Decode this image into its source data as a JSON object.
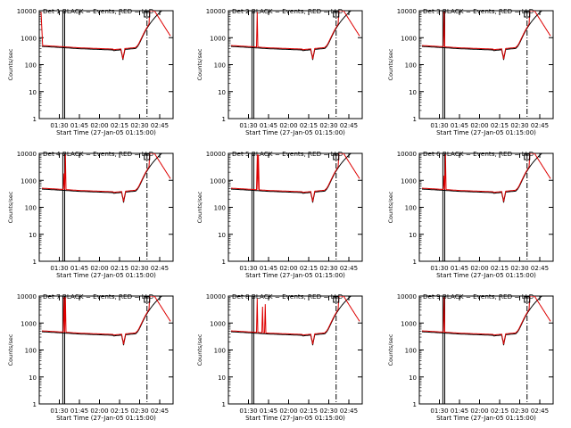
{
  "chart_data": [
    {
      "type": "line",
      "title": "Det 1  BLACK = Events, RED = LLD",
      "xlabel": "Start Time (27-Jan-05 01:15:00)",
      "ylabel": "Counts/sec",
      "yscale": "log",
      "ylim": [
        1,
        10000
      ],
      "xticks": [
        "01:30",
        "01:45",
        "02:00",
        "02:15",
        "02:30",
        "02:45"
      ],
      "yticks": [
        "1",
        "10",
        "100",
        "1000",
        "10000"
      ],
      "spike_min": [
        [
          1.32,
          9000
        ],
        [
          1.36,
          9000
        ]
      ],
      "dip_min": 135.5,
      "series": [
        {
          "name": "BLACK = Events",
          "color": "#000000"
        },
        {
          "name": "RED = LLD",
          "color": "#dd0000"
        }
      ]
    },
    {
      "type": "line",
      "title": "Det 2  BLACK = Events, RED = LLD",
      "xlabel": "Start Time (27-Jan-05 01:15:00)",
      "ylabel": "Counts/sec",
      "yscale": "log",
      "ylim": [
        1,
        10000
      ],
      "xticks": [
        "01:30",
        "01:45",
        "02:00",
        "02:15",
        "02:30",
        "02:45"
      ],
      "yticks": [
        "1",
        "10",
        "100",
        "1000",
        "10000"
      ],
      "spike_min": [
        [
          21.5,
          9000
        ]
      ],
      "dip_min": 136,
      "series": [
        {
          "name": "BLACK = Events",
          "color": "#000000"
        },
        {
          "name": "RED = LLD",
          "color": "#dd0000"
        }
      ]
    },
    {
      "type": "line",
      "title": "Det 3  BLACK = Events, RED = LLD",
      "xlabel": "Start Time (27-Jan-05 01:15:00)",
      "ylabel": "Counts/sec",
      "yscale": "log",
      "ylim": [
        1,
        10000
      ],
      "xticks": [
        "01:30",
        "01:45",
        "02:00",
        "02:15",
        "02:30",
        "02:45"
      ],
      "yticks": [
        "1",
        "10",
        "100",
        "1000",
        "10000"
      ],
      "spike_min": [
        [
          18.5,
          9000
        ]
      ],
      "dip_min": 136,
      "series": [
        {
          "name": "BLACK = Events",
          "color": "#000000"
        },
        {
          "name": "RED = LLD",
          "color": "#dd0000"
        }
      ]
    },
    {
      "type": "line",
      "title": "Det 4  BLACK = Events, RED = LLD",
      "xlabel": "Start Time (27-Jan-05 01:15:00)",
      "ylabel": "Counts/sec",
      "yscale": "log",
      "ylim": [
        1,
        10000
      ],
      "xticks": [
        "01:30",
        "01:45",
        "02:00",
        "02:15",
        "02:30",
        "02:45"
      ],
      "yticks": [
        "1",
        "10",
        "100",
        "1000",
        "10000"
      ],
      "spike_min": [
        [
          18.5,
          1800
        ],
        [
          19.5,
          9000
        ]
      ],
      "dip_min": 136,
      "series": [
        {
          "name": "BLACK = Events",
          "color": "#000000"
        },
        {
          "name": "RED = LLD",
          "color": "#dd0000"
        }
      ]
    },
    {
      "type": "line",
      "title": "Det 5  BLACK = Events, RED = LLD",
      "xlabel": "Start Time (27-Jan-05 01:15:00)",
      "ylabel": "Counts/sec",
      "yscale": "log",
      "ylim": [
        1,
        10000
      ],
      "xticks": [
        "01:30",
        "01:45",
        "02:00",
        "02:15",
        "02:30",
        "02:45"
      ],
      "yticks": [
        "1",
        "10",
        "100",
        "1000",
        "10000"
      ],
      "spike_min": [
        [
          21.6,
          9000
        ],
        [
          22.4,
          9000
        ]
      ],
      "dip_min": 136,
      "series": [
        {
          "name": "BLACK = Events",
          "color": "#000000"
        },
        {
          "name": "RED = LLD",
          "color": "#dd0000"
        }
      ]
    },
    {
      "type": "line",
      "title": "Det 6  BLACK = Events, RED = LLD",
      "xlabel": "Start Time (27-Jan-05 01:15:00)",
      "ylabel": "Counts/sec",
      "yscale": "log",
      "ylim": [
        1,
        10000
      ],
      "xticks": [
        "01:30",
        "01:45",
        "02:00",
        "02:15",
        "02:30",
        "02:45"
      ],
      "yticks": [
        "1",
        "10",
        "100",
        "1000",
        "10000"
      ],
      "spike_min": [
        [
          18.5,
          1500
        ],
        [
          19.5,
          9000
        ]
      ],
      "dip_min": 136,
      "series": [
        {
          "name": "BLACK = Events",
          "color": "#000000"
        },
        {
          "name": "RED = LLD",
          "color": "#dd0000"
        }
      ]
    },
    {
      "type": "line",
      "title": "Det 7  BLACK = Events, RED = LLD",
      "xlabel": "Start Time (27-Jan-05 01:15:00)",
      "ylabel": "Counts/sec",
      "yscale": "log",
      "ylim": [
        1,
        10000
      ],
      "xticks": [
        "01:30",
        "01:45",
        "02:00",
        "02:15",
        "02:30",
        "02:45"
      ],
      "yticks": [
        "1",
        "10",
        "100",
        "1000",
        "10000"
      ],
      "spike_min": [
        [
          18.5,
          9000
        ],
        [
          19.5,
          9000
        ]
      ],
      "dip_min": 136,
      "series": [
        {
          "name": "BLACK = Events",
          "color": "#000000"
        },
        {
          "name": "RED = LLD",
          "color": "#dd0000"
        }
      ]
    },
    {
      "type": "line",
      "title": "Det 8  BLACK = Events, RED = LLD",
      "xlabel": "Start Time (27-Jan-05 01:15:00)",
      "ylabel": "Counts/sec",
      "yscale": "log",
      "ylim": [
        1,
        10000
      ],
      "xticks": [
        "01:30",
        "01:45",
        "02:00",
        "02:15",
        "02:30",
        "02:45"
      ],
      "yticks": [
        "1",
        "10",
        "100",
        "1000",
        "10000"
      ],
      "spike_min": [
        [
          21.5,
          8000
        ],
        [
          25.5,
          4000
        ],
        [
          27.5,
          5000
        ]
      ],
      "dip_min": 136,
      "series": [
        {
          "name": "BLACK = Events",
          "color": "#000000"
        },
        {
          "name": "RED = LLD",
          "color": "#dd0000"
        }
      ]
    },
    {
      "type": "line",
      "title": "Det 9  BLACK = Events, RED = LLD",
      "xlabel": "Start Time (27-Jan-05 01:15:00)",
      "ylabel": "Counts/sec",
      "yscale": "log",
      "ylim": [
        1,
        10000
      ],
      "xticks": [
        "01:30",
        "01:45",
        "02:00",
        "02:15",
        "02:30",
        "02:45"
      ],
      "yticks": [
        "1",
        "10",
        "100",
        "1000",
        "10000"
      ],
      "spike_min": [
        [
          18.5,
          9000
        ]
      ],
      "dip_min": 136,
      "series": [
        {
          "name": "BLACK = Events",
          "color": "#000000"
        },
        {
          "name": "RED = LLD",
          "color": "#dd0000"
        }
      ]
    }
  ]
}
